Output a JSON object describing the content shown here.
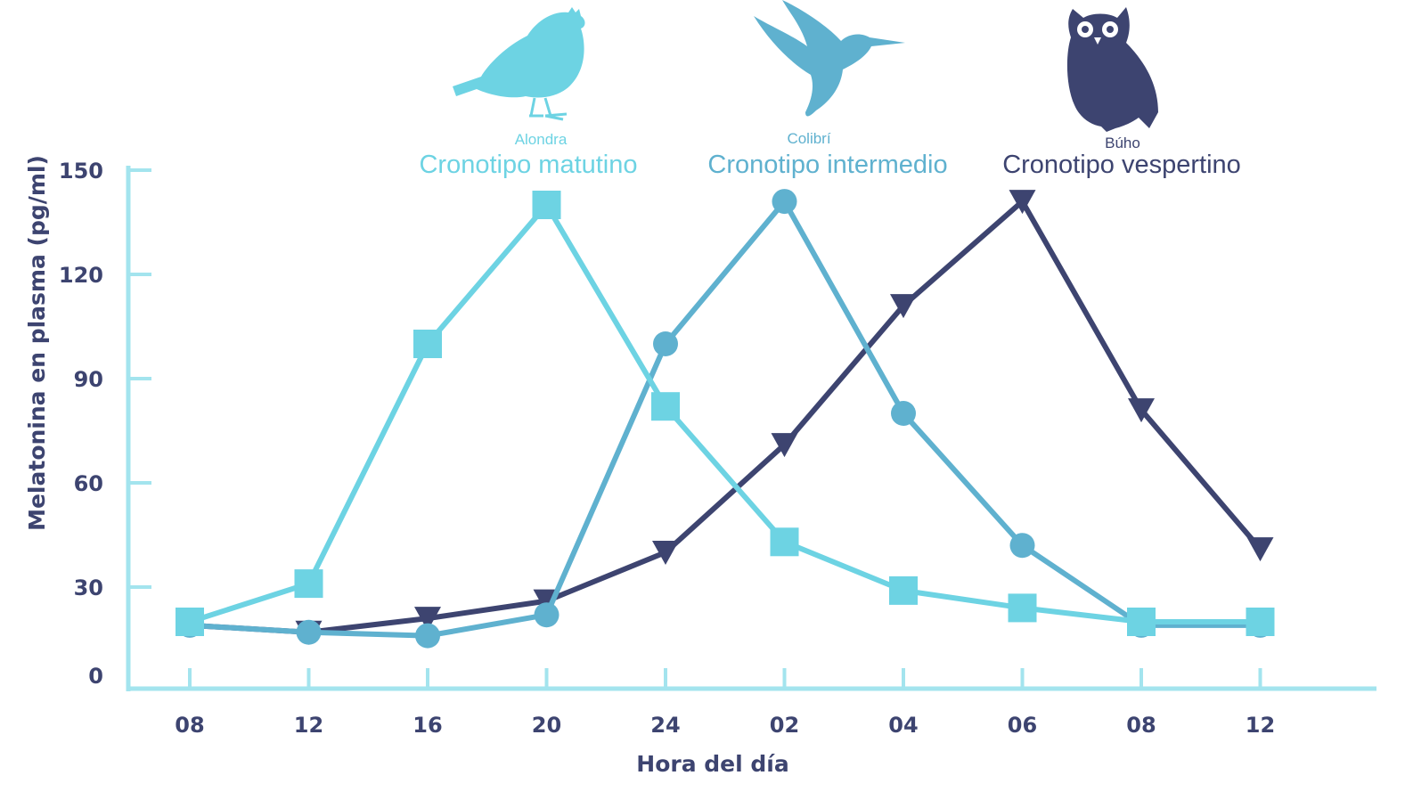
{
  "chart_data": {
    "type": "line",
    "xlabel": "Hora del día",
    "ylabel": "Melatonina en plasma (pg/ml)",
    "categories": [
      "08",
      "12",
      "16",
      "20",
      "24",
      "02",
      "04",
      "06",
      "08",
      "12"
    ],
    "ylim": [
      0,
      150
    ],
    "yticks": [
      0,
      30,
      60,
      90,
      120,
      150
    ],
    "grid": false,
    "legend_position": "top",
    "series": [
      {
        "name": "Cronotipo matutino",
        "animal": "Alondra",
        "marker": "square",
        "color": "#6dd3e3",
        "values": [
          20,
          31,
          100,
          140,
          82,
          43,
          29,
          24,
          20,
          20
        ]
      },
      {
        "name": "Cronotipo intermedio",
        "animal": "Colibrí",
        "marker": "circle",
        "color": "#5fb1cf",
        "values": [
          19,
          17,
          16,
          22,
          100,
          141,
          80,
          42,
          19,
          19
        ]
      },
      {
        "name": "Cronotipo vespertino",
        "animal": "Búho",
        "marker": "triangle-down",
        "color": "#3d4470",
        "values": [
          19,
          17,
          21,
          26,
          40,
          71,
          111,
          141,
          81,
          41
        ]
      }
    ]
  }
}
